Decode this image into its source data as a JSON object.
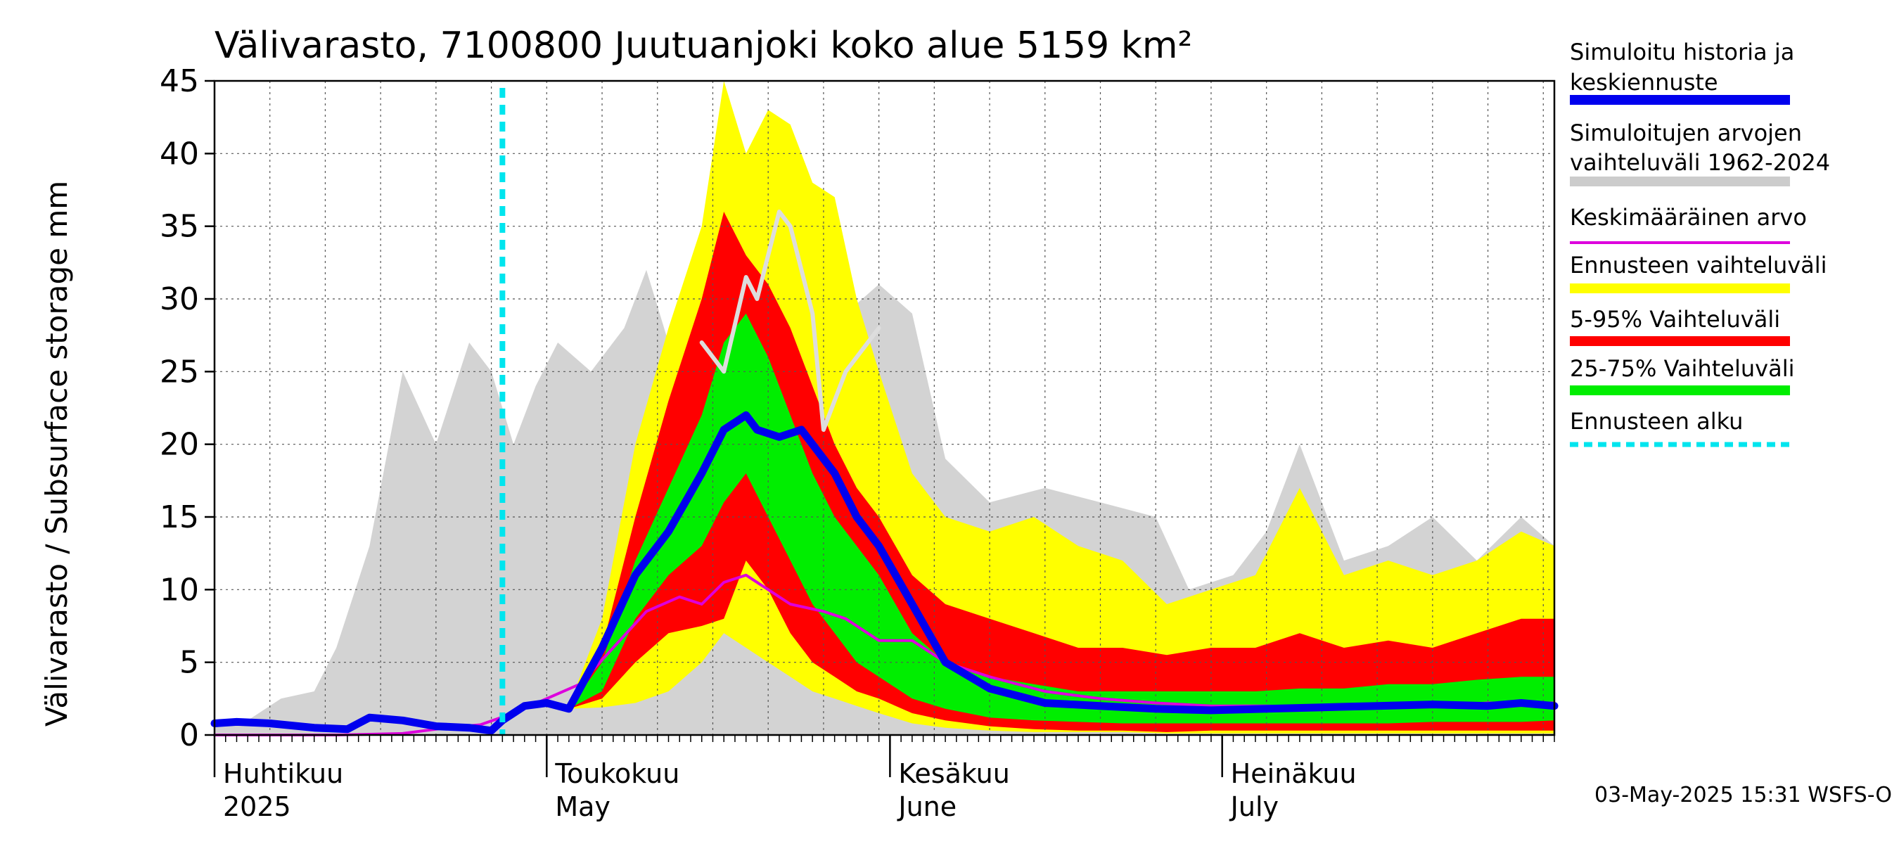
{
  "chart_data": {
    "type": "area",
    "title": "Välivarasto, 7100800 Juutuanjoki koko alue 5159 km²",
    "ylabel": "Välivarasto / Subsurface storage  mm",
    "ylim": [
      0,
      45
    ],
    "yticks": [
      "0",
      "5",
      "10",
      "15",
      "20",
      "25",
      "30",
      "35",
      "40",
      "45"
    ],
    "x_start": "2025-04-01",
    "x_end": "2025-07-31",
    "forecast_start": "2025-04-27",
    "grid": true,
    "legend_position": "right",
    "months": [
      {
        "date": "2025-04-01",
        "label1": "Huhtikuu",
        "label2": "2025"
      },
      {
        "date": "2025-05-01",
        "label1": "Toukokuu",
        "label2": "May"
      },
      {
        "date": "2025-06-01",
        "label1": "Kesäkuu",
        "label2": "June"
      },
      {
        "date": "2025-07-01",
        "label1": "Heinäkuu",
        "label2": "July"
      }
    ],
    "legend": [
      {
        "label1": "Simuloitu historia ja",
        "label2": "keskiennuste",
        "color": "#0000ee",
        "style": "thick"
      },
      {
        "label1": "Simuloitujen arvojen",
        "label2": "vaihteluväli 1962-2024",
        "color": "#cccccc",
        "style": "thick"
      },
      {
        "label1": "Keskimääräinen arvo",
        "label2": "",
        "color": "#dd00dd",
        "style": "thin"
      },
      {
        "label1": "Ennusteen vaihteluväli",
        "label2": "",
        "color": "#ffff00",
        "style": "thick"
      },
      {
        "label1": "5-95% Vaihteluväli",
        "label2": "",
        "color": "#ff0000",
        "style": "thick"
      },
      {
        "label1": "25-75% Vaihteluväli",
        "label2": "",
        "color": "#00ee00",
        "style": "thick"
      },
      {
        "label1": "Ennusteen alku",
        "label2": "",
        "color": "#00e5ee",
        "style": "dashed"
      }
    ],
    "footer": "03-May-2025 15:31 WSFS-O",
    "colors": {
      "history_range": "#d3d3d3",
      "forecast_range": "#ffff00",
      "p5_95": "#ff0000",
      "p25_75": "#00ee00",
      "median": "#0000ee",
      "mean": "#dd00dd",
      "highlight_year": "#dddddd",
      "forecast_start": "#00e5ee"
    },
    "series": {
      "history_range": {
        "x": [
          "2025-04-01",
          "2025-04-04",
          "2025-04-07",
          "2025-04-10",
          "2025-04-12",
          "2025-04-15",
          "2025-04-18",
          "2025-04-21",
          "2025-04-24",
          "2025-04-26",
          "2025-04-28",
          "2025-04-30",
          "2025-05-02",
          "2025-05-05",
          "2025-05-08",
          "2025-05-10",
          "2025-05-12",
          "2025-05-15",
          "2025-05-18",
          "2025-05-22",
          "2025-05-26",
          "2025-05-28",
          "2025-05-31",
          "2025-06-03",
          "2025-06-06",
          "2025-06-10",
          "2025-06-15",
          "2025-06-20",
          "2025-06-25",
          "2025-06-28",
          "2025-07-02",
          "2025-07-05",
          "2025-07-08",
          "2025-07-12",
          "2025-07-16",
          "2025-07-20",
          "2025-07-24",
          "2025-07-28",
          "2025-07-31"
        ],
        "hi": [
          0.8,
          1.0,
          2.5,
          3.0,
          6.0,
          13.0,
          25.0,
          20.0,
          27.0,
          25.0,
          20.0,
          24.0,
          27.0,
          25.0,
          28.0,
          32.0,
          27.0,
          30.0,
          26.0,
          36.0,
          33.0,
          29.0,
          31.0,
          29.0,
          19.0,
          16.0,
          17.0,
          16.0,
          15.0,
          10.0,
          11.0,
          14.0,
          20.0,
          12.0,
          13.0,
          15.0,
          12.0,
          15.0,
          13.0
        ],
        "lo": [
          0,
          0,
          0,
          0,
          0,
          0,
          0,
          0,
          0,
          0,
          0,
          0,
          0,
          0,
          0,
          0,
          0,
          0,
          0,
          0,
          0,
          0,
          0,
          0,
          0,
          0,
          0,
          0,
          0,
          0,
          0,
          0,
          0,
          0,
          0,
          0,
          0,
          0,
          0
        ]
      },
      "highlight_year": {
        "x": [
          "2025-05-15",
          "2025-05-17",
          "2025-05-19",
          "2025-05-20",
          "2025-05-22",
          "2025-05-23",
          "2025-05-25",
          "2025-05-26",
          "2025-05-28",
          "2025-05-30",
          "2025-05-31"
        ],
        "y": [
          27.0,
          25.0,
          31.5,
          30.0,
          36.0,
          35.0,
          29.0,
          21.0,
          25.0,
          27.0,
          28.0
        ]
      },
      "forecast_range": {
        "x": [
          "2025-05-03",
          "2025-05-06",
          "2025-05-09",
          "2025-05-12",
          "2025-05-15",
          "2025-05-17",
          "2025-05-19",
          "2025-05-21",
          "2025-05-23",
          "2025-05-25",
          "2025-05-27",
          "2025-05-29",
          "2025-05-31",
          "2025-06-03",
          "2025-06-06",
          "2025-06-10",
          "2025-06-14",
          "2025-06-18",
          "2025-06-22",
          "2025-06-26",
          "2025-06-30",
          "2025-07-04",
          "2025-07-08",
          "2025-07-12",
          "2025-07-16",
          "2025-07-20",
          "2025-07-24",
          "2025-07-28",
          "2025-07-31"
        ],
        "hi": [
          2.0,
          8.0,
          20.0,
          28.0,
          35.0,
          45.0,
          40.0,
          43.0,
          42.0,
          38.0,
          37.0,
          30.0,
          25.0,
          18.0,
          15.0,
          14.0,
          15.0,
          13.0,
          12.0,
          9.0,
          10.0,
          11.0,
          17.0,
          11.0,
          12.0,
          11.0,
          12.0,
          14.0,
          13.0
        ],
        "lo": [
          1.8,
          1.9,
          2.2,
          3.0,
          5.0,
          7.0,
          6.0,
          5.0,
          4.0,
          3.0,
          2.5,
          2.0,
          1.5,
          0.8,
          0.5,
          0.3,
          0.2,
          0.2,
          0.2,
          0.1,
          0.1,
          0.1,
          0.1,
          0.1,
          0.1,
          0.1,
          0.1,
          0.1,
          0.1
        ]
      },
      "p5_95": {
        "x": [
          "2025-05-03",
          "2025-05-06",
          "2025-05-09",
          "2025-05-12",
          "2025-05-15",
          "2025-05-17",
          "2025-05-19",
          "2025-05-21",
          "2025-05-23",
          "2025-05-25",
          "2025-05-27",
          "2025-05-29",
          "2025-05-31",
          "2025-06-03",
          "2025-06-06",
          "2025-06-10",
          "2025-06-14",
          "2025-06-18",
          "2025-06-22",
          "2025-06-26",
          "2025-06-30",
          "2025-07-04",
          "2025-07-08",
          "2025-07-12",
          "2025-07-16",
          "2025-07-20",
          "2025-07-24",
          "2025-07-28",
          "2025-07-31"
        ],
        "hi": [
          1.9,
          6.0,
          15.0,
          23.0,
          30.0,
          36.0,
          33.0,
          31.0,
          28.0,
          24.0,
          20.0,
          17.0,
          15.0,
          11.0,
          9.0,
          8.0,
          7.0,
          6.0,
          6.0,
          5.5,
          6.0,
          6.0,
          7.0,
          6.0,
          6.5,
          6.0,
          7.0,
          8.0,
          8.0
        ],
        "lo": [
          1.8,
          2.5,
          5.0,
          7.0,
          7.5,
          8.0,
          12.0,
          10.0,
          7.0,
          5.0,
          4.0,
          3.0,
          2.5,
          1.5,
          1.0,
          0.6,
          0.4,
          0.3,
          0.3,
          0.2,
          0.3,
          0.3,
          0.3,
          0.3,
          0.3,
          0.3,
          0.3,
          0.3,
          0.3
        ]
      },
      "p25_75": {
        "x": [
          "2025-05-03",
          "2025-05-06",
          "2025-05-09",
          "2025-05-12",
          "2025-05-15",
          "2025-05-17",
          "2025-05-19",
          "2025-05-21",
          "2025-05-23",
          "2025-05-25",
          "2025-05-27",
          "2025-05-29",
          "2025-05-31",
          "2025-06-03",
          "2025-06-06",
          "2025-06-10",
          "2025-06-14",
          "2025-06-18",
          "2025-06-22",
          "2025-06-26",
          "2025-06-30",
          "2025-07-04",
          "2025-07-08",
          "2025-07-12",
          "2025-07-16",
          "2025-07-20",
          "2025-07-24",
          "2025-07-28",
          "2025-07-31"
        ],
        "hi": [
          1.8,
          5.0,
          12.0,
          17.0,
          22.0,
          27.0,
          29.0,
          26.0,
          22.0,
          18.0,
          15.0,
          13.0,
          11.0,
          7.0,
          5.0,
          4.0,
          3.5,
          3.0,
          3.0,
          3.0,
          3.0,
          3.0,
          3.2,
          3.2,
          3.5,
          3.5,
          3.8,
          4.0,
          4.0
        ],
        "lo": [
          1.8,
          3.0,
          8.0,
          11.0,
          13.0,
          16.0,
          18.0,
          15.0,
          12.0,
          9.0,
          7.0,
          5.0,
          4.0,
          2.5,
          1.8,
          1.2,
          1.0,
          0.9,
          0.8,
          0.8,
          0.8,
          0.8,
          0.8,
          0.8,
          0.8,
          0.9,
          0.9,
          0.9,
          1.0
        ]
      },
      "median": {
        "x": [
          "2025-04-01",
          "2025-04-03",
          "2025-04-06",
          "2025-04-10",
          "2025-04-13",
          "2025-04-15",
          "2025-04-18",
          "2025-04-21",
          "2025-04-24",
          "2025-04-26",
          "2025-04-27",
          "2025-04-29",
          "2025-05-01",
          "2025-05-03",
          "2025-05-06",
          "2025-05-09",
          "2025-05-12",
          "2025-05-15",
          "2025-05-17",
          "2025-05-19",
          "2025-05-20",
          "2025-05-22",
          "2025-05-24",
          "2025-05-27",
          "2025-05-29",
          "2025-05-31",
          "2025-06-03",
          "2025-06-06",
          "2025-06-10",
          "2025-06-15",
          "2025-06-20",
          "2025-06-25",
          "2025-06-30",
          "2025-07-05",
          "2025-07-10",
          "2025-07-15",
          "2025-07-20",
          "2025-07-25",
          "2025-07-28",
          "2025-07-31"
        ],
        "y": [
          0.8,
          0.9,
          0.8,
          0.5,
          0.4,
          1.2,
          1.0,
          0.6,
          0.5,
          0.3,
          1.0,
          2.0,
          2.2,
          1.8,
          6.0,
          11.0,
          14.0,
          18.0,
          21.0,
          22.0,
          21.0,
          20.5,
          21.0,
          18.0,
          15.0,
          13.0,
          9.0,
          5.0,
          3.2,
          2.2,
          2.0,
          1.8,
          1.7,
          1.8,
          1.9,
          2.0,
          2.1,
          2.0,
          2.2,
          2.0
        ]
      },
      "mean": {
        "x": [
          "2025-04-01",
          "2025-04-06",
          "2025-04-12",
          "2025-04-18",
          "2025-04-22",
          "2025-04-25",
          "2025-04-28",
          "2025-05-01",
          "2025-05-04",
          "2025-05-07",
          "2025-05-10",
          "2025-05-13",
          "2025-05-15",
          "2025-05-17",
          "2025-05-19",
          "2025-05-21",
          "2025-05-23",
          "2025-05-26",
          "2025-05-28",
          "2025-05-31",
          "2025-06-03",
          "2025-06-06",
          "2025-06-10",
          "2025-06-15",
          "2025-06-20",
          "2025-06-25",
          "2025-06-30",
          "2025-07-05",
          "2025-07-10",
          "2025-07-15",
          "2025-07-20",
          "2025-07-25",
          "2025-07-31"
        ],
        "y": [
          0,
          0,
          0,
          0.1,
          0.5,
          0.7,
          1.5,
          2.5,
          3.5,
          6.0,
          8.5,
          9.5,
          9.0,
          10.5,
          11.0,
          10.0,
          9.0,
          8.5,
          8.0,
          6.5,
          6.5,
          5.0,
          4.0,
          3.0,
          2.5,
          2.2,
          2.0,
          2.0,
          1.9,
          2.0,
          2.0,
          2.2,
          2.2
        ]
      }
    }
  }
}
